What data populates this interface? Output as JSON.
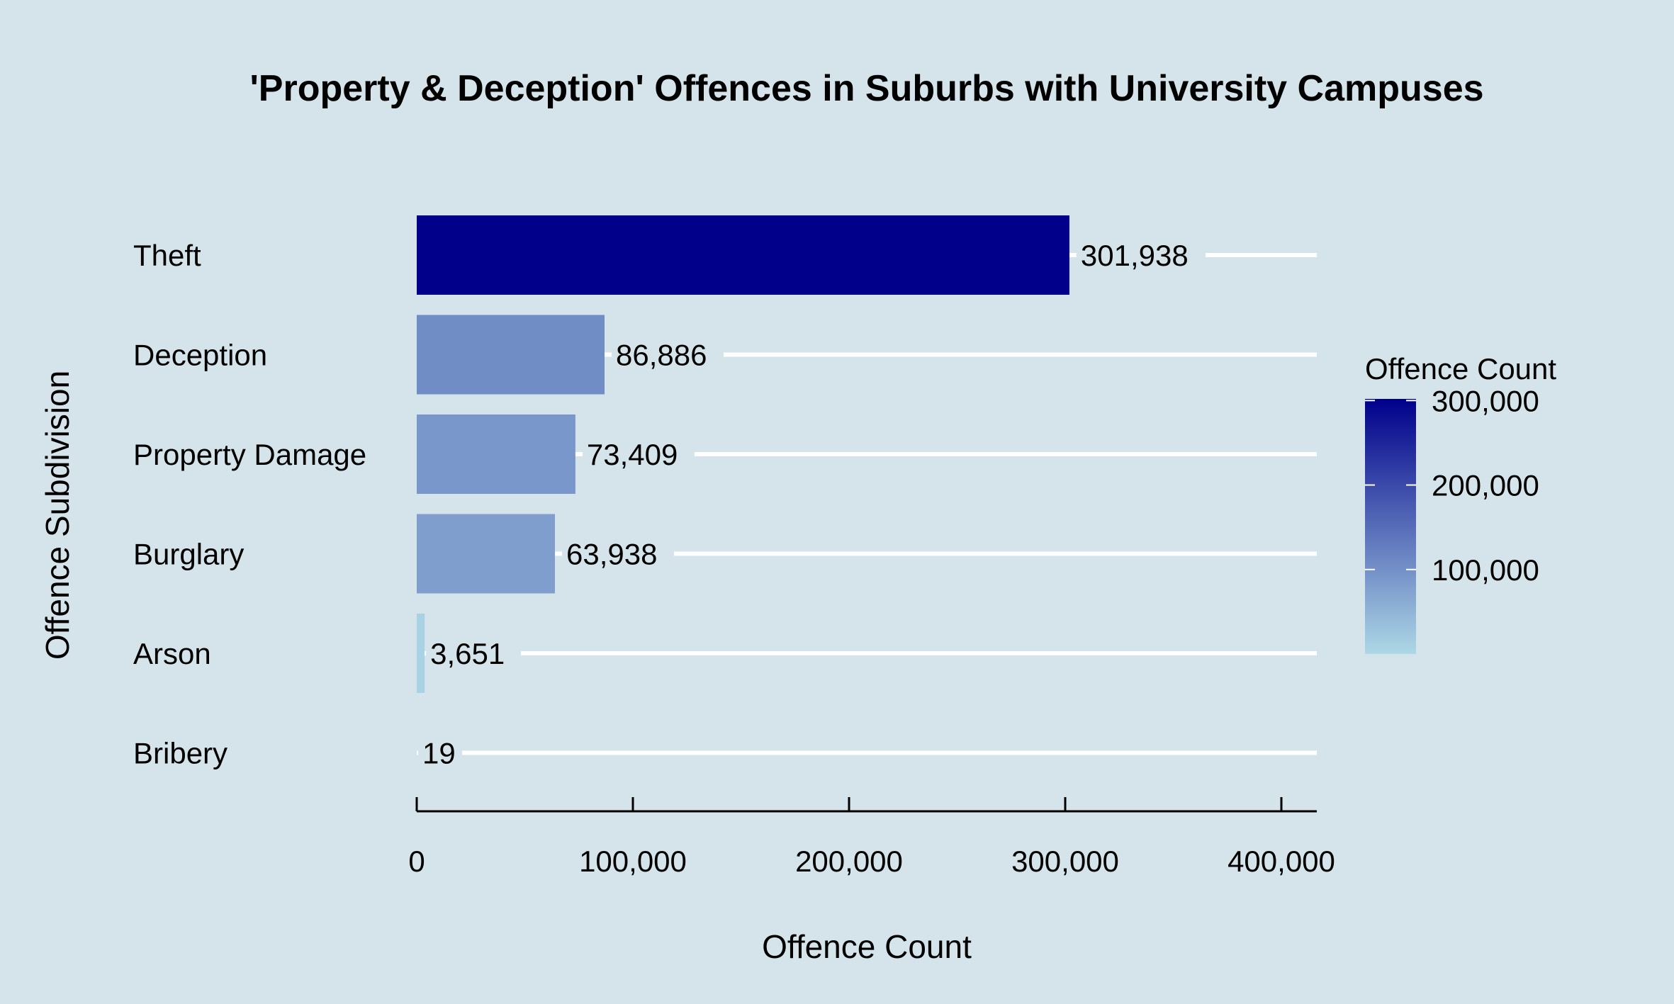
{
  "chart_data": {
    "type": "bar",
    "orientation": "horizontal",
    "title": "'Property & Deception' Offences in Suburbs with University Campuses",
    "xlabel": "Offence Count",
    "ylabel": "Offence Subdivision",
    "xlim": [
      0,
      415000
    ],
    "x_ticks": [
      0,
      100000,
      200000,
      300000,
      400000
    ],
    "x_tick_labels": [
      "0",
      "100,000",
      "200,000",
      "300,000",
      "400,000"
    ],
    "categories": [
      "Theft",
      "Deception",
      "Property Damage",
      "Burglary",
      "Arson",
      "Bribery"
    ],
    "values": [
      301938,
      86886,
      73409,
      63938,
      3651,
      19
    ],
    "value_labels": [
      "301,938",
      "86,886",
      "73,409",
      "63,938",
      "3,651",
      "19"
    ],
    "gridlines": "major-y",
    "legend": {
      "title": "Offence Count",
      "placement": "right",
      "type": "continuous-colorbar",
      "range": [
        19,
        301938
      ],
      "ticks": [
        100000,
        200000,
        300000
      ],
      "tick_labels": [
        "100,000",
        "200,000",
        "300,000"
      ],
      "color_low": "#add8e6",
      "color_high": "#00008b"
    },
    "colors": {
      "background": "#d5e4eb",
      "gridline": "#ffffff",
      "low": "#add8e6",
      "high": "#00008b"
    }
  }
}
